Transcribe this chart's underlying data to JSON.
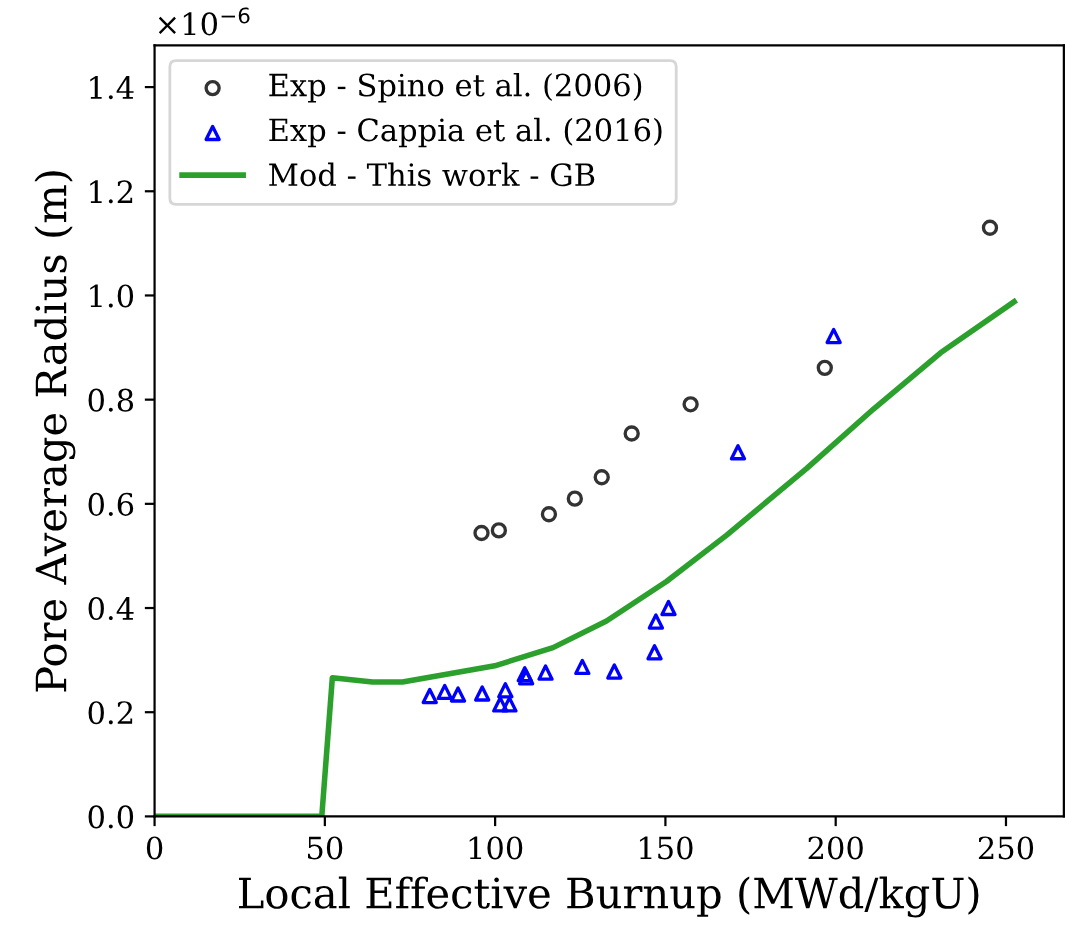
{
  "chart_data": {
    "type": "scatter",
    "xlabel": "Local Effective Burnup (MWd/kgU)",
    "ylabel": "Pore Average Radius (m)",
    "annotations": [
      "×10$^{−6}$"
    ],
    "xlim": [
      0,
      267
    ],
    "xticks": [
      0,
      50,
      100,
      150,
      200,
      250
    ],
    "ylim": [
      0,
      1.48
    ],
    "yticks": [
      {
        "value": 0,
        "label": "0.0"
      },
      0.2,
      0.4,
      0.6,
      0.8,
      {
        "value": 1,
        "label": "1.0"
      },
      1.2,
      1.4
    ],
    "grid": false,
    "legend": "top left",
    "series": [
      {
        "name": "Exp - Spino et al. (2006)",
        "marker": "circle",
        "color": "#333333",
        "x": [
          96.0,
          101.1,
          115.8,
          123.4,
          131.3,
          140.1,
          157.4,
          196.8,
          245.3
        ],
        "values": [
          0.544,
          0.549,
          0.58,
          0.61,
          0.651,
          0.735,
          0.791,
          0.861,
          1.13
        ]
      },
      {
        "name": "Exp - Cappia et al. (2016)",
        "marker": "triangle",
        "color": "#0000ff",
        "x": [
          80.8,
          85.2,
          89.1,
          96.2,
          103.0,
          101.5,
          104.2,
          108.7,
          109.1,
          114.8,
          125.6,
          135.0,
          146.8,
          147.2,
          150.9,
          171.3,
          199.4
        ],
        "values": [
          0.231,
          0.239,
          0.234,
          0.236,
          0.242,
          0.215,
          0.215,
          0.273,
          0.267,
          0.276,
          0.287,
          0.278,
          0.315,
          0.374,
          0.4,
          0.699,
          0.922
        ]
      },
      {
        "name": "Mod - This work - GB",
        "type": "line",
        "marker": "none",
        "line_style": "solid",
        "color": "#2ca02c",
        "x": [
          0,
          49.1,
          52.2,
          64,
          72.8,
          99.9,
          117,
          132.7,
          150.3,
          168,
          191.5,
          211.1,
          230.8,
          252.4
        ],
        "values": [
          0,
          0,
          0.266,
          0.258,
          0.258,
          0.289,
          0.324,
          0.375,
          0.451,
          0.54,
          0.668,
          0.782,
          0.89,
          0.988
        ]
      }
    ]
  }
}
